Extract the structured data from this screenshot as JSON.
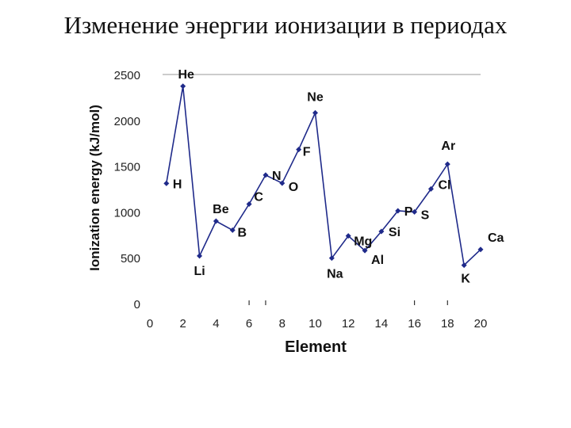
{
  "title": "Изменение энергии ионизации в периодах",
  "chart_data": {
    "type": "line",
    "xlabel": "Element",
    "ylabel": "Ionization energy (kJ/mol)",
    "xlim": [
      0,
      20
    ],
    "ylim": [
      0,
      2500
    ],
    "x_ticks": [
      "0",
      "2",
      "4",
      "6",
      "8",
      "10",
      "12",
      "14",
      "16",
      "18",
      "20"
    ],
    "y_ticks": [
      "0",
      "500",
      "1000",
      "1500",
      "2000",
      "2500"
    ],
    "grid": "top line only",
    "line_color": "#1f2a8a",
    "series": [
      {
        "points": [
          {
            "x": 1,
            "y": 1312,
            "label": "H"
          },
          {
            "x": 2,
            "y": 2372,
            "label": "He"
          },
          {
            "x": 3,
            "y": 520,
            "label": "Li"
          },
          {
            "x": 4,
            "y": 900,
            "label": "Be"
          },
          {
            "x": 5,
            "y": 801,
            "label": "B"
          },
          {
            "x": 6,
            "y": 1086,
            "label": "C"
          },
          {
            "x": 7,
            "y": 1402,
            "label": "N"
          },
          {
            "x": 8,
            "y": 1314,
            "label": "O"
          },
          {
            "x": 9,
            "y": 1681,
            "label": "F"
          },
          {
            "x": 10,
            "y": 2081,
            "label": "Ne"
          },
          {
            "x": 11,
            "y": 496,
            "label": "Na"
          },
          {
            "x": 12,
            "y": 738,
            "label": "Mg"
          },
          {
            "x": 13,
            "y": 578,
            "label": "Al"
          },
          {
            "x": 14,
            "y": 787,
            "label": "Si"
          },
          {
            "x": 15,
            "y": 1012,
            "label": "P"
          },
          {
            "x": 16,
            "y": 1000,
            "label": "S"
          },
          {
            "x": 17,
            "y": 1251,
            "label": "Cl"
          },
          {
            "x": 18,
            "y": 1521,
            "label": "Ar"
          },
          {
            "x": 19,
            "y": 419,
            "label": "K"
          },
          {
            "x": 20,
            "y": 590,
            "label": "Ca"
          }
        ]
      }
    ]
  }
}
